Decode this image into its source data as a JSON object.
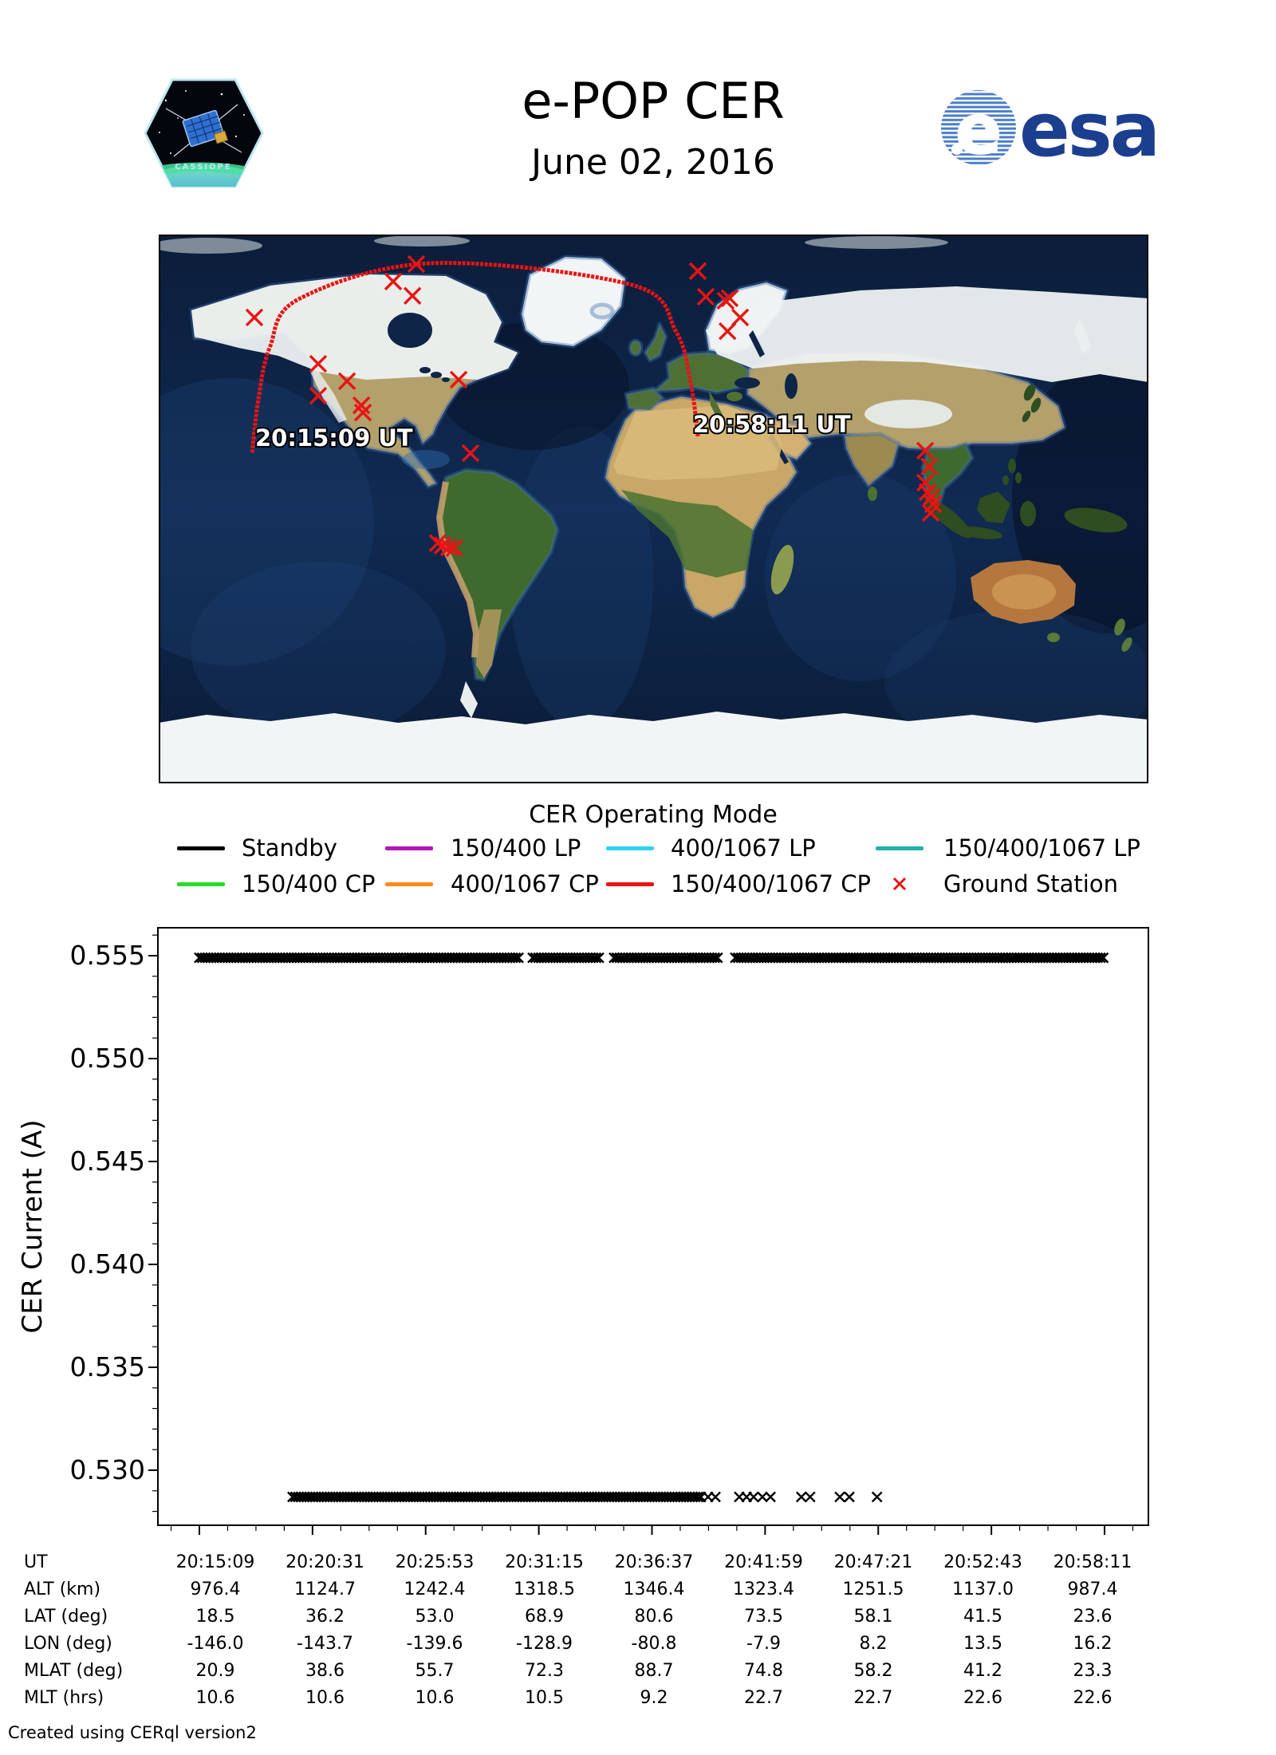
{
  "header": {
    "title": "e-POP CER",
    "date": "June 02, 2016",
    "patch_name": "CASSIOPE",
    "esa_wordmark": "esa",
    "esa_blue": "#1b3e8f"
  },
  "map": {
    "start_time_label": "20:15:09 UT",
    "end_time_label": "20:58:11 UT",
    "track_color": "#e81414",
    "station_color": "#e81414",
    "track_points_lonlat": [
      [
        -146.0,
        18.5
      ],
      [
        -143.7,
        36.2
      ],
      [
        -139.6,
        53.0
      ],
      [
        -128.9,
        68.9
      ],
      [
        -80.8,
        80.6
      ],
      [
        -7.9,
        73.5
      ],
      [
        8.2,
        58.1
      ],
      [
        13.5,
        41.5
      ],
      [
        16.2,
        23.6
      ]
    ],
    "ground_stations_lonlat": [
      [
        -145.2,
        62.8
      ],
      [
        -94.7,
        74.6
      ],
      [
        -86.3,
        80.3
      ],
      [
        -87.7,
        69.9
      ],
      [
        -122.0,
        47.6
      ],
      [
        -111.5,
        41.9
      ],
      [
        -122.0,
        37.1
      ],
      [
        -106.3,
        34.0
      ],
      [
        -105.7,
        31.6
      ],
      [
        -70.9,
        42.4
      ],
      [
        -66.6,
        18.3
      ],
      [
        -78.5,
        -11.2
      ],
      [
        -76.7,
        -12.0
      ],
      [
        -74.4,
        -12.6
      ],
      [
        -72.4,
        -12.8
      ],
      [
        16.1,
        78.0
      ],
      [
        19.0,
        69.6
      ],
      [
        26.2,
        68.3
      ],
      [
        27.7,
        69.1
      ],
      [
        31.5,
        62.8
      ],
      [
        26.9,
        58.3
      ],
      [
        98.8,
        19.1
      ],
      [
        100.3,
        13.9
      ],
      [
        98.8,
        8.6
      ],
      [
        99.7,
        5.5
      ],
      [
        101.1,
        3.9
      ],
      [
        101.7,
        1.6
      ],
      [
        100.8,
        -1.3
      ]
    ]
  },
  "legend": {
    "title": "CER Operating Mode",
    "items": [
      {
        "label": "Standby",
        "color": "#000000",
        "type": "line"
      },
      {
        "label": "150/400 LP",
        "color": "#b515b5",
        "type": "line"
      },
      {
        "label": "400/1067 LP",
        "color": "#2fd4f2",
        "type": "line"
      },
      {
        "label": "150/400/1067 LP",
        "color": "#1fb3aa",
        "type": "line"
      },
      {
        "label": "150/400 CP",
        "color": "#27dd27",
        "type": "line"
      },
      {
        "label": "400/1067 CP",
        "color": "#ff8c1c",
        "type": "line"
      },
      {
        "label": "150/400/1067 CP",
        "color": "#e81414",
        "type": "line"
      },
      {
        "label": "Ground Station",
        "color": "#e81414",
        "type": "x-marker"
      }
    ]
  },
  "chart_data": {
    "type": "scatter",
    "ylabel": "CER Current (A)",
    "marker": "x",
    "marker_color": "#000000",
    "ylim": [
      0.5273,
      0.5564
    ],
    "yticks": [
      0.53,
      0.535,
      0.54,
      0.545,
      0.55,
      0.555
    ],
    "ytick_labels": [
      "0.530",
      "0.535",
      "0.540",
      "0.545",
      "0.550",
      "0.555"
    ],
    "minor_ytick_step": 0.001,
    "x_span_seconds": 2582,
    "xtick_seconds": [
      0,
      322.75,
      645.5,
      968.25,
      1291,
      1613.75,
      1936.5,
      2259.25,
      2582
    ],
    "xtick_time_labels": [
      "20:15:09",
      "20:20:31",
      "20:25:53",
      "20:31:15",
      "20:36:37",
      "20:41:59",
      "20:47:21",
      "20:52:43",
      "20:58:11"
    ],
    "series": [
      {
        "name": "CER current high rail",
        "value_a": 0.5549,
        "segments_s": [
          [
            0,
            915
          ],
          [
            951,
            1142
          ],
          [
            1183,
            1483
          ],
          [
            1529,
            2582
          ]
        ]
      },
      {
        "name": "CER current low rail",
        "value_a": 0.5287,
        "segments_s": [
          [
            266,
            1433
          ]
        ],
        "points_s": [
          1451,
          1472,
          1540,
          1561,
          1581,
          1606,
          1629,
          1717,
          1742,
          1827,
          1854,
          1933
        ]
      }
    ]
  },
  "table": {
    "rows": [
      {
        "label": "UT",
        "values": [
          "20:15:09",
          "20:20:31",
          "20:25:53",
          "20:31:15",
          "20:36:37",
          "20:41:59",
          "20:47:21",
          "20:52:43",
          "20:58:11"
        ]
      },
      {
        "label": "ALT (km)",
        "values": [
          "976.4",
          "1124.7",
          "1242.4",
          "1318.5",
          "1346.4",
          "1323.4",
          "1251.5",
          "1137.0",
          "987.4"
        ]
      },
      {
        "label": "LAT (deg)",
        "values": [
          "18.5",
          "36.2",
          "53.0",
          "68.9",
          "80.6",
          "73.5",
          "58.1",
          "41.5",
          "23.6"
        ]
      },
      {
        "label": "LON (deg)",
        "values": [
          "-146.0",
          "-143.7",
          "-139.6",
          "-128.9",
          "-80.8",
          "-7.9",
          "8.2",
          "13.5",
          "16.2"
        ]
      },
      {
        "label": "MLAT (deg)",
        "values": [
          "20.9",
          "38.6",
          "55.7",
          "72.3",
          "88.7",
          "74.8",
          "58.2",
          "41.2",
          "23.3"
        ]
      },
      {
        "label": "MLT (hrs)",
        "values": [
          "10.6",
          "10.6",
          "10.6",
          "10.5",
          "9.2",
          "22.7",
          "22.7",
          "22.6",
          "22.6"
        ]
      }
    ]
  },
  "footer": {
    "credit": "Created using CERql version2"
  }
}
